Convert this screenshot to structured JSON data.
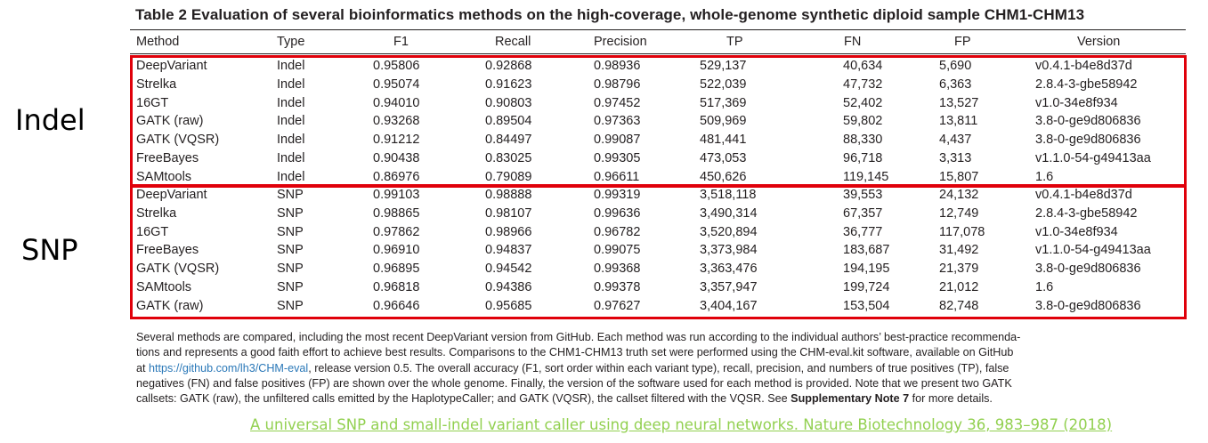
{
  "title": "Table 2  Evaluation of several bioinformatics methods on the high-coverage, whole-genome synthetic diploid sample CHM1-CHM13",
  "side_labels": {
    "indel": "Indel",
    "snp": "SNP"
  },
  "table": {
    "columns": [
      "Method",
      "Type",
      "F1",
      "Recall",
      "Precision",
      "TP",
      "FN",
      "FP",
      "Version"
    ],
    "indel_rows": [
      [
        "DeepVariant",
        "Indel",
        "0.95806",
        "0.92868",
        "0.98936",
        "529,137",
        "40,634",
        "5,690",
        "v0.4.1-b4e8d37d"
      ],
      [
        "Strelka",
        "Indel",
        "0.95074",
        "0.91623",
        "0.98796",
        "522,039",
        "47,732",
        "6,363",
        "2.8.4-3-gbe58942"
      ],
      [
        "16GT",
        "Indel",
        "0.94010",
        "0.90803",
        "0.97452",
        "517,369",
        "52,402",
        "13,527",
        "v1.0-34e8f934"
      ],
      [
        "GATK (raw)",
        "Indel",
        "0.93268",
        "0.89504",
        "0.97363",
        "509,969",
        "59,802",
        "13,811",
        "3.8-0-ge9d806836"
      ],
      [
        "GATK (VQSR)",
        "Indel",
        "0.91212",
        "0.84497",
        "0.99087",
        "481,441",
        "88,330",
        "4,437",
        "3.8-0-ge9d806836"
      ],
      [
        "FreeBayes",
        "Indel",
        "0.90438",
        "0.83025",
        "0.99305",
        "473,053",
        "96,718",
        "3,313",
        "v1.1.0-54-g49413aa"
      ],
      [
        "SAMtools",
        "Indel",
        "0.86976",
        "0.79089",
        "0.96611",
        "450,626",
        "119,145",
        "15,807",
        "1.6"
      ]
    ],
    "snp_rows": [
      [
        "DeepVariant",
        "SNP",
        "0.99103",
        "0.98888",
        "0.99319",
        "3,518,118",
        "39,553",
        "24,132",
        "v0.4.1-b4e8d37d"
      ],
      [
        "Strelka",
        "SNP",
        "0.98865",
        "0.98107",
        "0.99636",
        "3,490,314",
        "67,357",
        "12,749",
        "2.8.4-3-gbe58942"
      ],
      [
        "16GT",
        "SNP",
        "0.97862",
        "0.98966",
        "0.96782",
        "3,520,894",
        "36,777",
        "117,078",
        "v1.0-34e8f934"
      ],
      [
        "FreeBayes",
        "SNP",
        "0.96910",
        "0.94837",
        "0.99075",
        "3,373,984",
        "183,687",
        "31,492",
        "v1.1.0-54-g49413aa"
      ],
      [
        "GATK (VQSR)",
        "SNP",
        "0.96895",
        "0.94542",
        "0.99368",
        "3,363,476",
        "194,195",
        "21,379",
        "3.8-0-ge9d806836"
      ],
      [
        "SAMtools",
        "SNP",
        "0.96818",
        "0.94386",
        "0.99378",
        "3,357,947",
        "199,724",
        "21,012",
        "1.6"
      ],
      [
        "GATK (raw)",
        "SNP",
        "0.96646",
        "0.95685",
        "0.97627",
        "3,404,167",
        "153,504",
        "82,748",
        "3.8-0-ge9d806836"
      ]
    ]
  },
  "caption": {
    "line1": "Several methods are compared, including the most recent DeepVariant version from GitHub. Each method was run according to the individual authors’ best-practice recommenda-",
    "line2": "tions and represents a good faith effort to achieve best results. Comparisons to the CHM1-CHM13 truth set were performed using the CHM-eval.kit software, available on GitHub",
    "line3_pre": "at ",
    "line3_link": "https://github.com/lh3/CHM-eval",
    "line3_post": ", release version 0.5. The overall accuracy (F1, sort order within each variant type), recall, precision, and numbers of true positives (TP), false",
    "line4": "negatives (FN) and false positives (FP) are shown over the whole genome. Finally, the version of the software used for each method is provided. Note that we present two GATK",
    "line5": "callsets: GATK (raw), the unfiltered calls emitted by the HaplotypeCaller; and GATK (VQSR), the callset filtered with the VQSR. See ",
    "line5_bold": "Supplementary Note 7",
    "line5_post": " for more details."
  },
  "citation": "A universal SNP and small-indel variant caller using deep neural networks. Nature Biotechnology 36, 983–987 (2018)",
  "colors": {
    "highlight_box": "#e0000a",
    "citation": "#92d050",
    "link": "#2a78b8"
  }
}
